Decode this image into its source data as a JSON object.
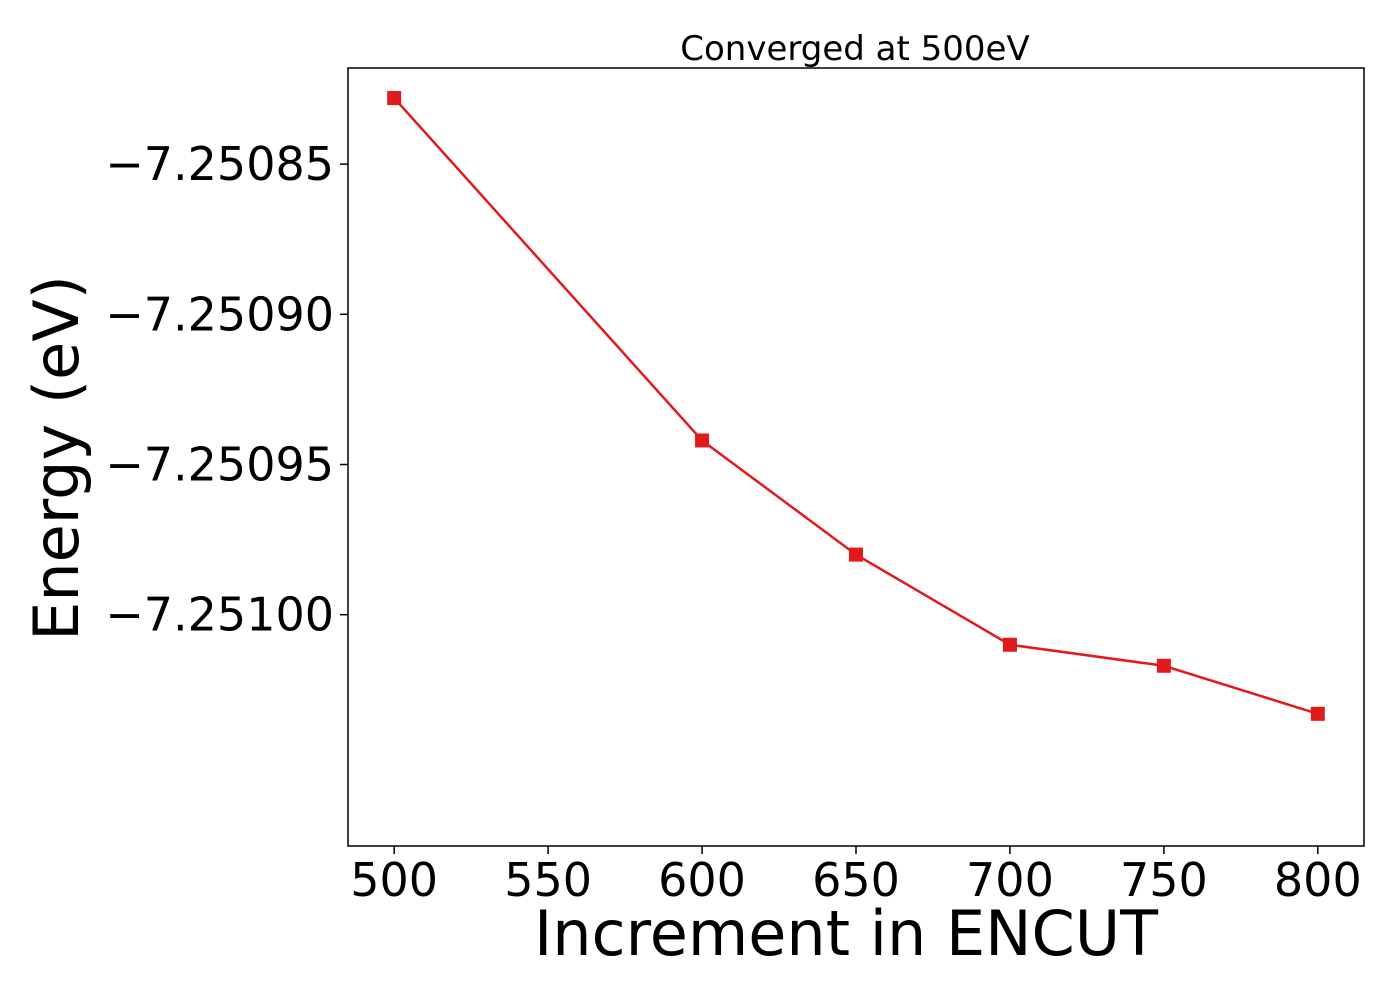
{
  "chart_data": {
    "type": "line",
    "title": "Converged at 500eV",
    "xlabel": "Increment in ENCUT",
    "ylabel": "Energy (eV)",
    "x": [
      500,
      600,
      650,
      700,
      750,
      800
    ],
    "series": [
      {
        "values": [
          -7.250828,
          -7.250942,
          -7.25098,
          -7.25101,
          -7.251017,
          -7.251033
        ],
        "color": "#e31a1c",
        "marker": "square"
      }
    ],
    "xticks": [
      500,
      550,
      600,
      650,
      700,
      750,
      800
    ],
    "xtick_labels": [
      "500",
      "550",
      "600",
      "650",
      "700",
      "750",
      "800"
    ],
    "yticks": [
      -7.25085,
      -7.2509,
      -7.25095,
      -7.251
    ],
    "ytick_labels": [
      "−7.25085",
      "−7.25090",
      "−7.25095",
      "−7.25100"
    ],
    "xlim": [
      485,
      815
    ],
    "ylim": [
      -7.251077,
      -7.250818
    ],
    "grid": false,
    "legend": "none"
  }
}
